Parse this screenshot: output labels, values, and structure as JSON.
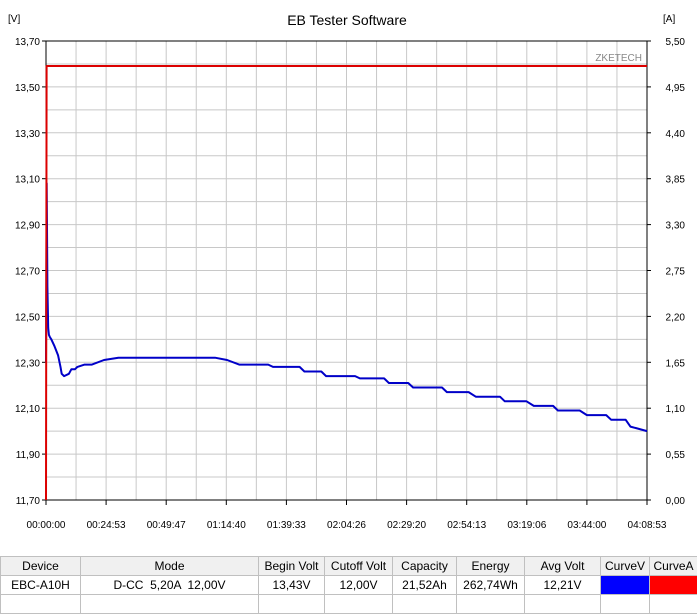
{
  "window": {
    "title": "EB Tester Software"
  },
  "chart_data": {
    "type": "line",
    "title": "EB Tester Software",
    "watermark": "ZKETECH",
    "left_unit": "[V]",
    "right_unit": "[A]",
    "left_ylim": [
      11.7,
      13.7
    ],
    "right_ylim": [
      0.0,
      5.5
    ],
    "left_ticks": [
      "13,70",
      "13,50",
      "13,30",
      "13,10",
      "12,90",
      "12,70",
      "12,50",
      "12,30",
      "12,10",
      "11,90",
      "11,70"
    ],
    "right_ticks": [
      "5,50",
      "4,95",
      "4,40",
      "3,85",
      "3,30",
      "2,75",
      "2,20",
      "1,65",
      "1,10",
      "0,55",
      "0,00"
    ],
    "x_ticks": [
      "00:00:00",
      "00:24:53",
      "00:49:47",
      "01:14:40",
      "01:39:33",
      "02:04:26",
      "02:29:20",
      "02:54:13",
      "03:19:06",
      "03:44:00",
      "04:08:53"
    ],
    "x_range_minutes": [
      0,
      248.88
    ],
    "grid": true,
    "series": [
      {
        "name": "CurveV",
        "axis": "left",
        "color": "#0000c8",
        "x": [
          0.0,
          0.3,
          0.6,
          0.9,
          1.2,
          1.6,
          2.2,
          3.5,
          5.0,
          6.0,
          6.5,
          7.5,
          9.5,
          10.5,
          12.0,
          13.0,
          16.0,
          19.0,
          24.0,
          30.0,
          60.0,
          70.0,
          75.0,
          80.0,
          92.0,
          94.0,
          105.0,
          107.0,
          114.0,
          116.0,
          128.0,
          130.0,
          140.0,
          142.0,
          150.0,
          152.0,
          164.0,
          166.0,
          175.0,
          178.0,
          188.0,
          190.0,
          199.0,
          202.0,
          210.0,
          212.0,
          221.0,
          224.0,
          232.0,
          234.0,
          240.0,
          242.0,
          248.88
        ],
        "y": [
          12.3,
          13.08,
          12.63,
          12.45,
          12.42,
          12.41,
          12.4,
          12.37,
          12.33,
          12.28,
          12.25,
          12.24,
          12.25,
          12.27,
          12.27,
          12.28,
          12.29,
          12.29,
          12.31,
          12.32,
          12.32,
          12.32,
          12.31,
          12.29,
          12.29,
          12.28,
          12.28,
          12.26,
          12.26,
          12.24,
          12.24,
          12.23,
          12.23,
          12.21,
          12.21,
          12.19,
          12.19,
          12.17,
          12.17,
          12.15,
          12.15,
          12.13,
          12.13,
          12.11,
          12.11,
          12.09,
          12.09,
          12.07,
          12.07,
          12.05,
          12.05,
          12.02,
          12.0
        ]
      },
      {
        "name": "CurveA",
        "axis": "right",
        "color": "#dc0000",
        "x": [
          0.0,
          0.25,
          248.88
        ],
        "y": [
          0.0,
          5.2,
          5.2
        ]
      }
    ]
  },
  "results_table": {
    "headers": [
      "Device",
      "Mode",
      "Begin Volt",
      "Cutoff Volt",
      "Capacity",
      "Energy",
      "Avg Volt",
      "CurveV",
      "CurveA"
    ],
    "row": {
      "device": "EBC-A10H",
      "mode": "D-CC  5,20A  12,00V",
      "begin_volt": "13,43V",
      "cutoff_volt": "12,00V",
      "capacity": "21,52Ah",
      "energy": "262,74Wh",
      "avg_volt": "12,21V",
      "curve_v_color": "#0000ff",
      "curve_a_color": "#ff0000"
    }
  }
}
